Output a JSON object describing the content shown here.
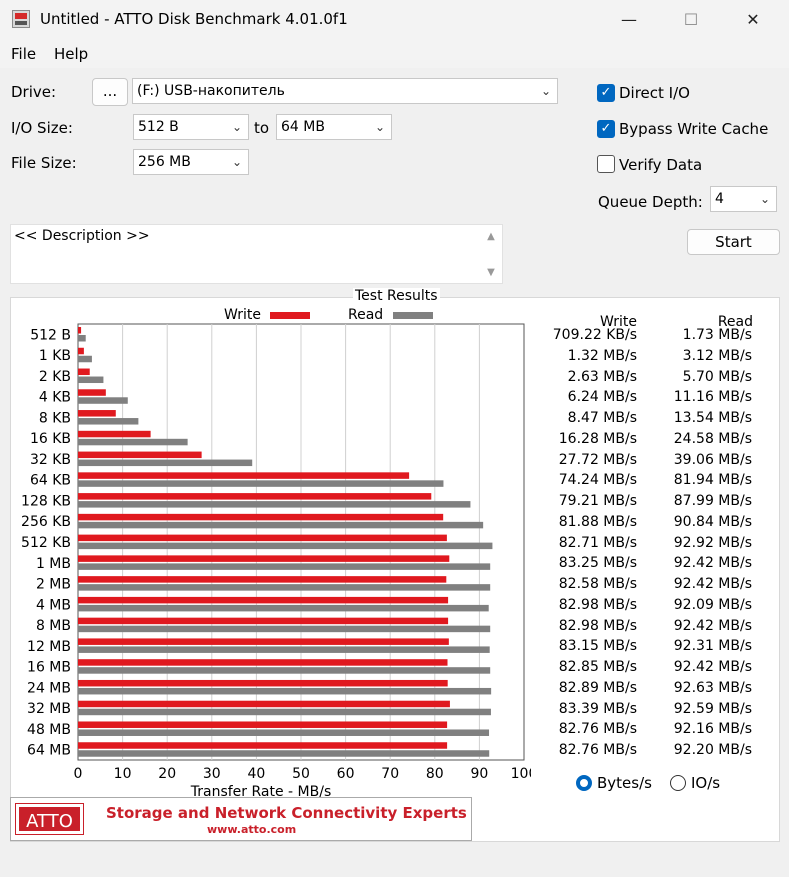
{
  "window": {
    "title": "Untitled - ATTO Disk Benchmark 4.01.0f1",
    "minimize": "—",
    "maximize": "☐",
    "close": "✕"
  },
  "menu": {
    "file": "File",
    "help": "Help"
  },
  "controls": {
    "drive_label": "Drive:",
    "browse_label": "...",
    "drive_value": "(F:) USB-накопитель",
    "io_size_label": "I/O Size:",
    "io_from": "512 B",
    "io_to_label": "to",
    "io_to": "64 MB",
    "file_size_label": "File Size:",
    "file_size": "256 MB",
    "direct_io_label": "Direct I/O",
    "direct_io": true,
    "bypass_cache_label": "Bypass Write Cache",
    "bypass_cache": true,
    "verify_label": "Verify Data",
    "verify": false,
    "queue_depth_label": "Queue Depth:",
    "queue_depth": "4",
    "start_label": "Start",
    "description": "<< Description >>"
  },
  "results": {
    "title": "Test Results",
    "write_label": "Write",
    "read_label": "Read",
    "col_write": "Write",
    "col_read": "Read",
    "write_color": "#e0191f",
    "read_color": "#808080",
    "rows": [
      {
        "size": "512 B",
        "write": "709.22 KB/s",
        "read": "1.73 MB/s"
      },
      {
        "size": "1 KB",
        "write": "1.32 MB/s",
        "read": "3.12 MB/s"
      },
      {
        "size": "2 KB",
        "write": "2.63 MB/s",
        "read": "5.70 MB/s"
      },
      {
        "size": "4 KB",
        "write": "6.24 MB/s",
        "read": "11.16 MB/s"
      },
      {
        "size": "8 KB",
        "write": "8.47 MB/s",
        "read": "13.54 MB/s"
      },
      {
        "size": "16 KB",
        "write": "16.28 MB/s",
        "read": "24.58 MB/s"
      },
      {
        "size": "32 KB",
        "write": "27.72 MB/s",
        "read": "39.06 MB/s"
      },
      {
        "size": "64 KB",
        "write": "74.24 MB/s",
        "read": "81.94 MB/s"
      },
      {
        "size": "128 KB",
        "write": "79.21 MB/s",
        "read": "87.99 MB/s"
      },
      {
        "size": "256 KB",
        "write": "81.88 MB/s",
        "read": "90.84 MB/s"
      },
      {
        "size": "512 KB",
        "write": "82.71 MB/s",
        "read": "92.92 MB/s"
      },
      {
        "size": "1 MB",
        "write": "83.25 MB/s",
        "read": "92.42 MB/s"
      },
      {
        "size": "2 MB",
        "write": "82.58 MB/s",
        "read": "92.42 MB/s"
      },
      {
        "size": "4 MB",
        "write": "82.98 MB/s",
        "read": "92.09 MB/s"
      },
      {
        "size": "8 MB",
        "write": "82.98 MB/s",
        "read": "92.42 MB/s"
      },
      {
        "size": "12 MB",
        "write": "83.15 MB/s",
        "read": "92.31 MB/s"
      },
      {
        "size": "16 MB",
        "write": "82.85 MB/s",
        "read": "92.42 MB/s"
      },
      {
        "size": "24 MB",
        "write": "82.89 MB/s",
        "read": "92.63 MB/s"
      },
      {
        "size": "32 MB",
        "write": "83.39 MB/s",
        "read": "92.59 MB/s"
      },
      {
        "size": "48 MB",
        "write": "82.76 MB/s",
        "read": "92.16 MB/s"
      },
      {
        "size": "64 MB",
        "write": "82.76 MB/s",
        "read": "92.20 MB/s"
      }
    ],
    "unit_bytes_label": "Bytes/s",
    "unit_io_label": "IO/s",
    "unit_selected": "Bytes/s"
  },
  "chart_data": {
    "type": "bar",
    "orientation": "horizontal",
    "xlabel": "Transfer Rate - MB/s",
    "xlim": [
      0,
      100
    ],
    "xticks": [
      0,
      10,
      20,
      30,
      40,
      50,
      60,
      70,
      80,
      90,
      100
    ],
    "grid": true,
    "legend_placement": "top",
    "categories": [
      "512 B",
      "1 KB",
      "2 KB",
      "4 KB",
      "8 KB",
      "16 KB",
      "32 KB",
      "64 KB",
      "128 KB",
      "256 KB",
      "512 KB",
      "1 MB",
      "2 MB",
      "4 MB",
      "8 MB",
      "12 MB",
      "16 MB",
      "24 MB",
      "32 MB",
      "48 MB",
      "64 MB"
    ],
    "series": [
      {
        "name": "Write",
        "values": [
          0.69,
          1.32,
          2.63,
          6.24,
          8.47,
          16.28,
          27.72,
          74.24,
          79.21,
          81.88,
          82.71,
          83.25,
          82.58,
          82.98,
          82.98,
          83.15,
          82.85,
          82.89,
          83.39,
          82.76,
          82.76
        ]
      },
      {
        "name": "Read",
        "values": [
          1.73,
          3.12,
          5.7,
          11.16,
          13.54,
          24.58,
          39.06,
          81.94,
          87.99,
          90.84,
          92.92,
          92.42,
          92.42,
          92.09,
          92.42,
          92.31,
          92.42,
          92.63,
          92.59,
          92.16,
          92.2
        ]
      }
    ]
  },
  "banner": {
    "logo": "ATTO",
    "tagline": "Storage and Network Connectivity Experts",
    "url": "www.atto.com"
  }
}
